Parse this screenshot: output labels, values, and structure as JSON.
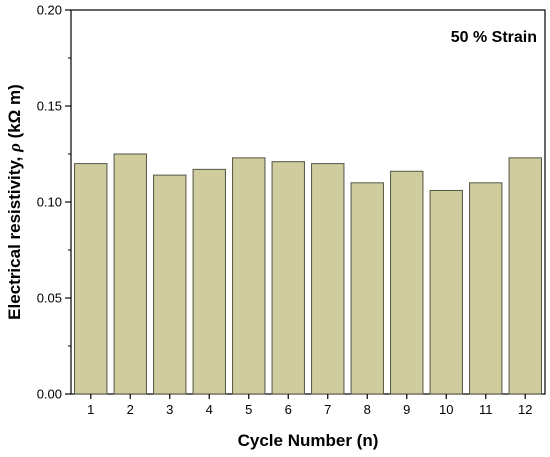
{
  "chart_data": {
    "type": "bar",
    "title": "",
    "annotation": "50 % Strain",
    "xlabel": "Cycle Number (n)",
    "ylabel_prefix": "Electrical  resistivity, ",
    "ylabel_symbol": "ρ",
    "ylabel_unit": "  (kΩ m)",
    "categories": [
      "1",
      "2",
      "3",
      "4",
      "5",
      "6",
      "7",
      "8",
      "9",
      "10",
      "11",
      "12"
    ],
    "values": [
      0.12,
      0.125,
      0.114,
      0.117,
      0.123,
      0.121,
      0.12,
      0.11,
      0.116,
      0.106,
      0.11,
      0.123
    ],
    "ylim": [
      0,
      0.2
    ],
    "yticks": [
      "0.00",
      "0.05",
      "0.10",
      "0.15",
      "0.20"
    ],
    "grid": false,
    "bar_color": "#cfcc9e",
    "bar_edge_color": "#555544"
  }
}
